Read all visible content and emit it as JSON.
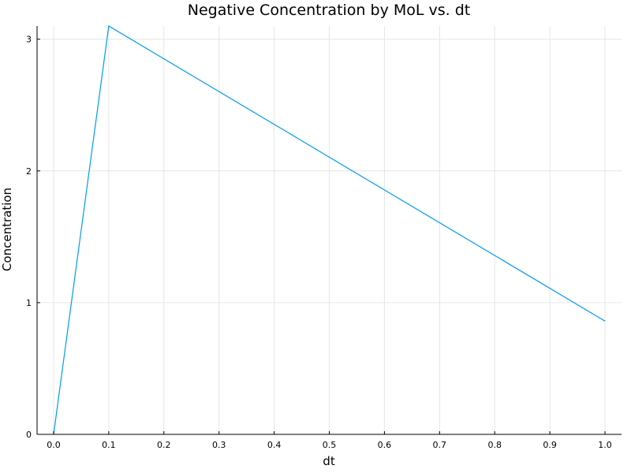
{
  "chart_data": {
    "type": "line",
    "title": "Negative Concentration by MoL vs. dt",
    "xlabel": "dt",
    "ylabel": "Concentration",
    "xlim": [
      -0.03,
      1.03
    ],
    "ylim": [
      0,
      3.1
    ],
    "x_ticks": [
      0.0,
      0.1,
      0.2,
      0.3,
      0.4,
      0.5,
      0.6,
      0.7,
      0.8,
      0.9,
      1.0
    ],
    "x_tick_labels": [
      "0.0",
      "0.1",
      "0.2",
      "0.3",
      "0.4",
      "0.5",
      "0.6",
      "0.7",
      "0.8",
      "0.9",
      "1.0"
    ],
    "y_ticks": [
      0,
      1,
      2,
      3
    ],
    "y_tick_labels": [
      "0",
      "1",
      "2",
      "3"
    ],
    "grid": true,
    "legend": "none",
    "series": [
      {
        "color": "#009af9",
        "x": [
          0.0,
          0.1,
          1.0
        ],
        "y": [
          0.0,
          3.1,
          0.86
        ]
      }
    ]
  }
}
